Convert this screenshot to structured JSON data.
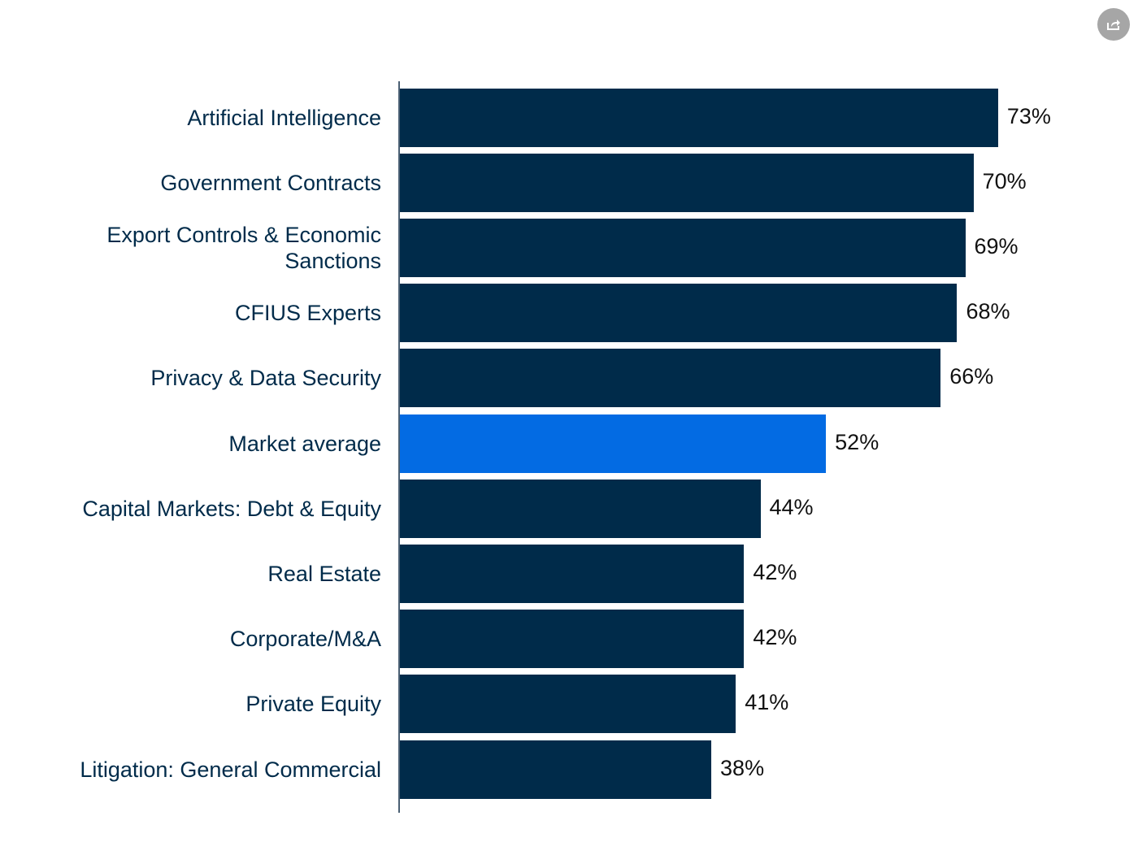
{
  "chart_data": {
    "type": "bar",
    "orientation": "horizontal",
    "title": "",
    "xlabel": "",
    "ylabel": "",
    "xlim": [
      0,
      100
    ],
    "grid": false,
    "categories": [
      "Artificial Intelligence",
      "Government Contracts",
      "Export Controls & Economic Sanctions",
      "CFIUS Experts",
      "Privacy & Data Security",
      "Market average",
      "Capital Markets: Debt & Equity",
      "Real Estate",
      "Corporate/M&A",
      "Private Equity",
      "Litigation: General Commercial"
    ],
    "values": [
      73,
      70,
      69,
      68,
      66,
      52,
      44,
      42,
      42,
      41,
      38
    ],
    "value_labels": [
      "73%",
      "70%",
      "69%",
      "68%",
      "66%",
      "52%",
      "44%",
      "42%",
      "42%",
      "41%",
      "38%"
    ],
    "highlight_index": 5,
    "colors": {
      "bar": "#002b4a",
      "highlight": "#036be3",
      "axis": "#4a5f73",
      "label": "#002b4a"
    }
  },
  "toolbar": {
    "share_icon": "share-icon"
  }
}
